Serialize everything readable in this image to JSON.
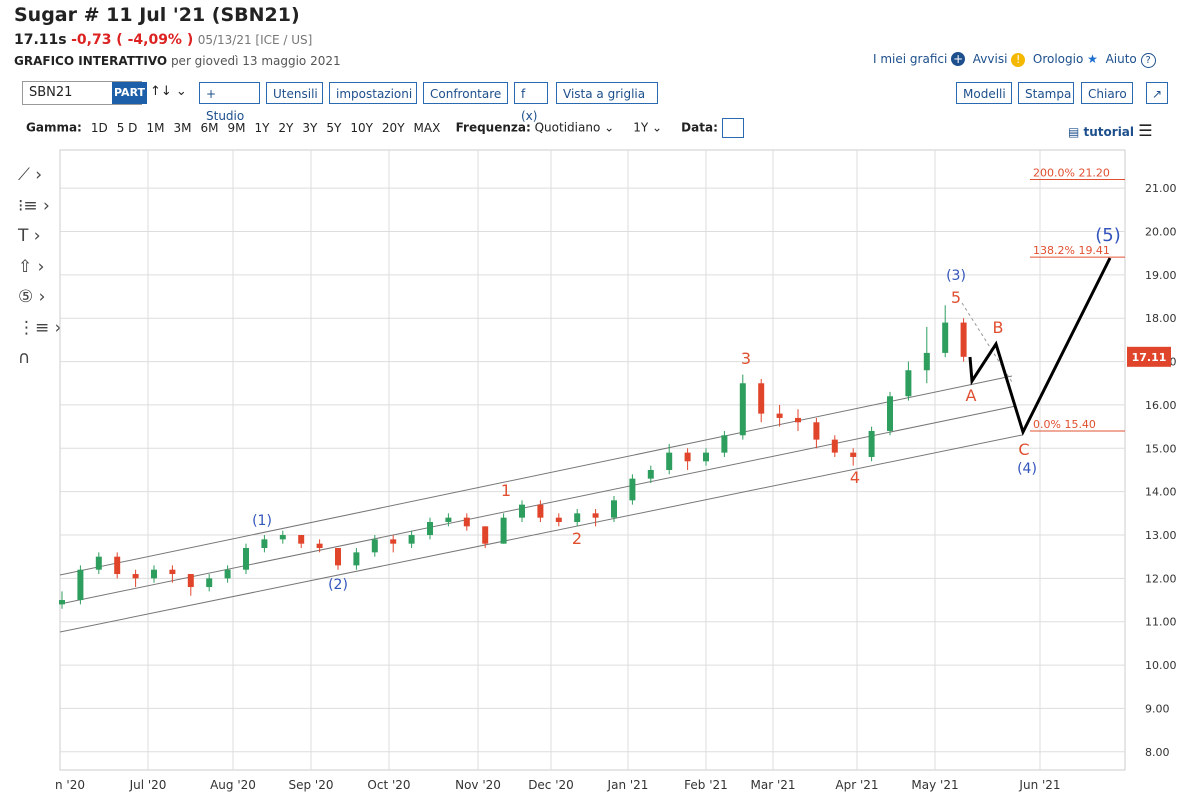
{
  "header": {
    "title": "Sugar # 11 Jul '21 (SBN21)",
    "price": "17.11s",
    "change": "-0,73 ( -4,09% )",
    "meta": "05/13/21 [ICE / US]",
    "subtitle_bold": "GRAFICO INTERATTIVO",
    "subtitle": "per giovedì 13 maggio 2021"
  },
  "top_links": [
    "I miei grafici",
    "Avvisi",
    "Orologio",
    "Aiuto"
  ],
  "toolbar": {
    "symbol": "SBN21",
    "badge": "PART",
    "buttons": [
      "+ Studio",
      "Utensili",
      "impostazioni",
      "Confrontare",
      "f (x)",
      "Vista a griglia"
    ],
    "right_buttons": [
      "Modelli",
      "Stampa",
      "Chiaro"
    ]
  },
  "range_bar": {
    "label": "Gamma:",
    "ranges": [
      "1D",
      "5 D",
      "1M",
      "3M",
      "6M",
      "9M",
      "1Y",
      "2Y",
      "3Y",
      "5Y",
      "10Y",
      "20Y",
      "MAX"
    ],
    "freq_label": "Frequenza:",
    "freq": "Quotidiano",
    "period": "1Y",
    "date_label": "Data:",
    "tutorial": "tutorial"
  },
  "chart": {
    "type": "candlestick",
    "ylim": [
      7.58,
      21.88
    ],
    "yticks": [
      {
        "value": 21,
        "label": "21.00"
      },
      {
        "value": 20,
        "label": "20.00"
      },
      {
        "value": 19,
        "label": "19.00"
      },
      {
        "value": 18,
        "label": "18.00"
      },
      {
        "value": 17,
        "label": "17.00"
      },
      {
        "value": 16,
        "label": "16.00"
      },
      {
        "value": 15,
        "label": "15.00"
      },
      {
        "value": 14,
        "label": "14.00"
      },
      {
        "value": 13,
        "label": "13.00"
      },
      {
        "value": 12,
        "label": "12.00"
      },
      {
        "value": 11,
        "label": "11.00"
      },
      {
        "value": 10,
        "label": "10.00"
      },
      {
        "value": 9,
        "label": "9.00"
      },
      {
        "value": 8,
        "label": "8.00"
      }
    ],
    "x_labels": [
      "n '20",
      "Jul '20",
      "Aug '20",
      "Sep '20",
      "Oct '20",
      "Nov '20",
      "Dec '20",
      "Jan '21",
      "Feb '21",
      "Mar '21",
      "Apr '21",
      "May '21",
      "Jun '21"
    ],
    "up_color": "#2e9e5e",
    "down_color": "#e0452c",
    "candles": [
      [
        11.4,
        11.7,
        11.3,
        11.5
      ],
      [
        11.5,
        12.3,
        11.4,
        12.2
      ],
      [
        12.2,
        12.6,
        12.1,
        12.5
      ],
      [
        12.5,
        12.6,
        12.0,
        12.1
      ],
      [
        12.1,
        12.2,
        11.8,
        12.0
      ],
      [
        12.0,
        12.3,
        11.9,
        12.2
      ],
      [
        12.2,
        12.3,
        11.9,
        12.1
      ],
      [
        12.1,
        12.1,
        11.6,
        11.8
      ],
      [
        11.8,
        12.1,
        11.7,
        12.0
      ],
      [
        12.0,
        12.3,
        11.9,
        12.2
      ],
      [
        12.2,
        12.8,
        12.1,
        12.7
      ],
      [
        12.7,
        13.0,
        12.6,
        12.9
      ],
      [
        12.9,
        13.1,
        12.8,
        13.0
      ],
      [
        13.0,
        13.0,
        12.7,
        12.8
      ],
      [
        12.8,
        12.9,
        12.6,
        12.7
      ],
      [
        12.7,
        12.7,
        12.2,
        12.3
      ],
      [
        12.3,
        12.7,
        12.2,
        12.6
      ],
      [
        12.6,
        13.0,
        12.5,
        12.9
      ],
      [
        12.9,
        13.0,
        12.6,
        12.8
      ],
      [
        12.8,
        13.1,
        12.7,
        13.0
      ],
      [
        13.0,
        13.4,
        12.9,
        13.3
      ],
      [
        13.3,
        13.5,
        13.2,
        13.4
      ],
      [
        13.4,
        13.5,
        13.1,
        13.2
      ],
      [
        13.2,
        13.2,
        12.7,
        12.8
      ],
      [
        12.8,
        13.5,
        12.8,
        13.4
      ],
      [
        13.4,
        13.8,
        13.3,
        13.7
      ],
      [
        13.7,
        13.8,
        13.3,
        13.4
      ],
      [
        13.4,
        13.5,
        13.2,
        13.3
      ],
      [
        13.3,
        13.6,
        13.2,
        13.5
      ],
      [
        13.5,
        13.6,
        13.2,
        13.4
      ],
      [
        13.4,
        13.9,
        13.3,
        13.8
      ],
      [
        13.8,
        14.4,
        13.7,
        14.3
      ],
      [
        14.3,
        14.6,
        14.2,
        14.5
      ],
      [
        14.5,
        15.1,
        14.4,
        14.9
      ],
      [
        14.9,
        15.0,
        14.5,
        14.7
      ],
      [
        14.7,
        15.0,
        14.6,
        14.9
      ],
      [
        14.9,
        15.4,
        14.8,
        15.3
      ],
      [
        15.3,
        16.7,
        15.2,
        16.5
      ],
      [
        16.5,
        16.6,
        15.6,
        15.8
      ],
      [
        15.8,
        16.0,
        15.5,
        15.7
      ],
      [
        15.7,
        15.9,
        15.4,
        15.6
      ],
      [
        15.6,
        15.7,
        15.0,
        15.2
      ],
      [
        15.2,
        15.3,
        14.8,
        14.9
      ],
      [
        14.9,
        15.0,
        14.6,
        14.8
      ],
      [
        14.8,
        15.5,
        14.7,
        15.4
      ],
      [
        15.4,
        16.3,
        15.3,
        16.2
      ],
      [
        16.2,
        17.0,
        16.1,
        16.8
      ],
      [
        16.8,
        17.8,
        16.5,
        17.2
      ],
      [
        17.2,
        18.3,
        17.1,
        17.9
      ],
      [
        17.9,
        18.0,
        17.0,
        17.11
      ]
    ],
    "last_price": {
      "value": 17.11,
      "label": "17.11"
    },
    "fib_levels": [
      {
        "value": 21.2,
        "label": "200.0% 21.20"
      },
      {
        "value": 19.41,
        "label": "138.2% 19.41"
      },
      {
        "value": 15.4,
        "label": "0.0% 15.40"
      }
    ],
    "wave_labels": [
      "(1)",
      "(2)",
      "1",
      "2",
      "3",
      "4",
      "5",
      "(3)",
      "A",
      "B",
      "C",
      "(4)",
      "(5)"
    ]
  }
}
